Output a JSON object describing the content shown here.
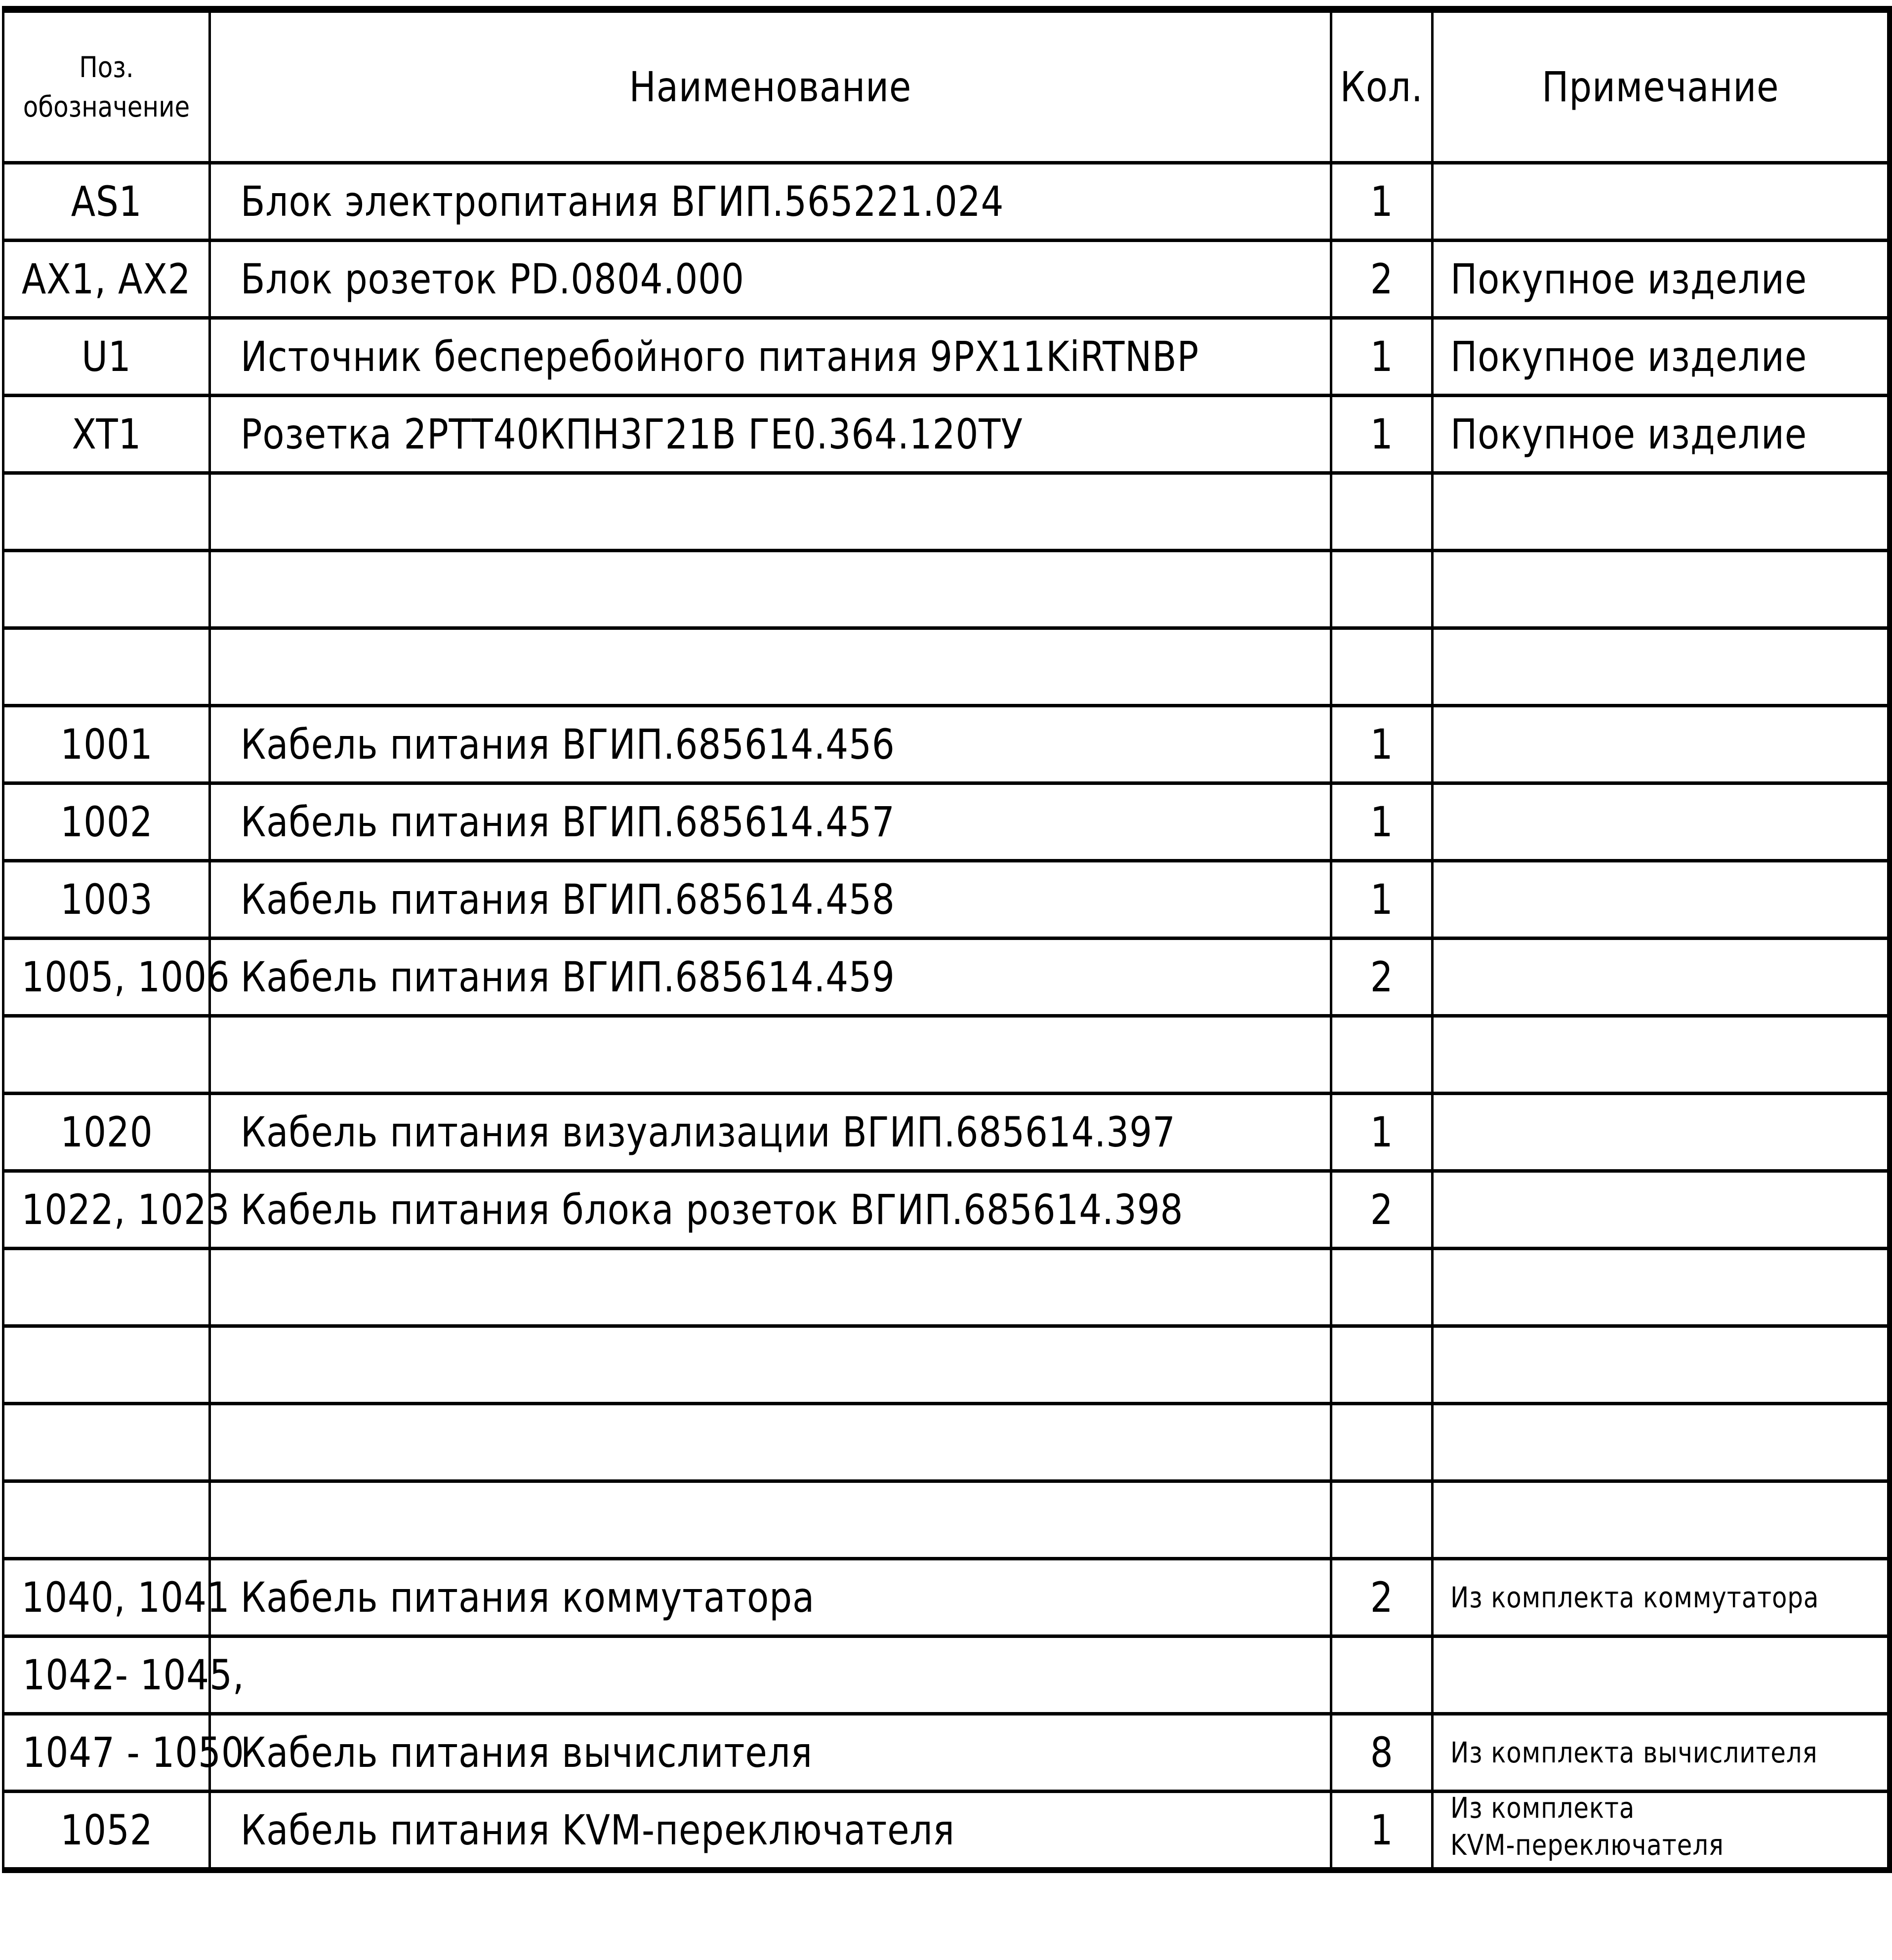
{
  "header": {
    "pos_line1": "Поз.",
    "pos_line2": "обозначение",
    "name": "Наименование",
    "qty": "Кол.",
    "note": "Примечание"
  },
  "rows": [
    {
      "pos": "AS1",
      "name": "Блок электропитания ВГИП.565221.024",
      "qty": "1",
      "note": ""
    },
    {
      "pos": "AX1, AX2",
      "name": "Блок розеток PD.0804.000",
      "qty": "2",
      "note": "Покупное изделие"
    },
    {
      "pos": "U1",
      "name": "Источник бесперебойного питания 9PX11KiRTNBP",
      "qty": "1",
      "note": "Покупное изделие"
    },
    {
      "pos": "XT1",
      "name": "Розетка 2РТТ40КПН3Г21В ГЕ0.364.120ТУ",
      "qty": "1",
      "note": "Покупное изделие"
    },
    {
      "pos": "",
      "name": "",
      "qty": "",
      "note": ""
    },
    {
      "pos": "",
      "name": "",
      "qty": "",
      "note": ""
    },
    {
      "pos": "",
      "name": "",
      "qty": "",
      "note": ""
    },
    {
      "pos": "1001",
      "name": "Кабель питания ВГИП.685614.456",
      "qty": "1",
      "note": ""
    },
    {
      "pos": "1002",
      "name": "Кабель питания ВГИП.685614.457",
      "qty": "1",
      "note": ""
    },
    {
      "pos": "1003",
      "name": "Кабель питания ВГИП.685614.458",
      "qty": "1",
      "note": ""
    },
    {
      "pos": "1005, 1006",
      "name": "Кабель питания ВГИП.685614.459",
      "qty": "2",
      "note": ""
    },
    {
      "pos": "",
      "name": "",
      "qty": "",
      "note": ""
    },
    {
      "pos": "1020",
      "name": "Кабель питания визуализации ВГИП.685614.397",
      "qty": "1",
      "note": ""
    },
    {
      "pos": "1022, 1023",
      "name": "Кабель питания блока розеток ВГИП.685614.398",
      "qty": "2",
      "note": ""
    },
    {
      "pos": "",
      "name": "",
      "qty": "",
      "note": ""
    },
    {
      "pos": "",
      "name": "",
      "qty": "",
      "note": ""
    },
    {
      "pos": "",
      "name": "",
      "qty": "",
      "note": ""
    },
    {
      "pos": "",
      "name": "",
      "qty": "",
      "note": ""
    },
    {
      "pos": "1040, 1041",
      "name": "Кабель питания коммутатора",
      "qty": "2",
      "note": "Из комплекта коммутатора"
    },
    {
      "pos": "1042- 1045,",
      "name": "",
      "qty": "",
      "note": ""
    },
    {
      "pos": "1047 - 1050",
      "name": "Кабель питания вычислителя",
      "qty": "8",
      "note": "Из комплекта вычислителя"
    },
    {
      "pos": "1052",
      "name": "Кабель питания KVM-переключателя",
      "qty": "1",
      "note_line1": "Из комплекта",
      "note_line2": "KVM-переключателя"
    }
  ]
}
